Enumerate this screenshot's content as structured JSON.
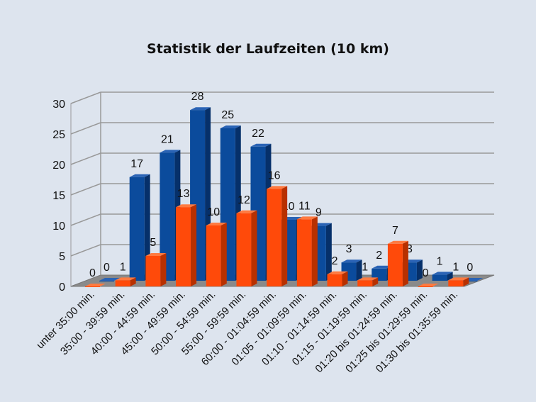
{
  "chart_data": {
    "type": "bar",
    "title": "Statistik der Laufzeiten (10 km)",
    "xlabel": "",
    "ylabel": "",
    "ylim": [
      0,
      30
    ],
    "yticks": [
      0,
      5,
      10,
      15,
      20,
      25,
      30
    ],
    "grid": true,
    "legend": "none",
    "three_d": true,
    "categories": [
      "unter 35:00 min.",
      "35:00 - 39:59 min.",
      "40:00 - 44:59 min.",
      "45:00 - 49:59 min.",
      "50:00 - 54:59 min.",
      "55:00 - 59:59 min.",
      "60:00 - 01:04:59 min.",
      "01:05 - 01:09:59 min.",
      "01:10 - 01:14:59 min.",
      "01:15 - 01:19:59 min.",
      "01:20 bis 01:24:59 min.",
      "01:25 bis 01:29:59 min.",
      "01:30 bis 01:35:59 min."
    ],
    "series": [
      {
        "color": "#ff4a0a",
        "values": [
          0,
          1,
          5,
          13,
          10,
          12,
          16,
          11,
          2,
          1,
          7,
          0,
          1
        ]
      },
      {
        "color": "#0b4b9c",
        "values": [
          0,
          17,
          21,
          28,
          25,
          22,
          10,
          9,
          3,
          2,
          3,
          1,
          0
        ]
      }
    ]
  }
}
